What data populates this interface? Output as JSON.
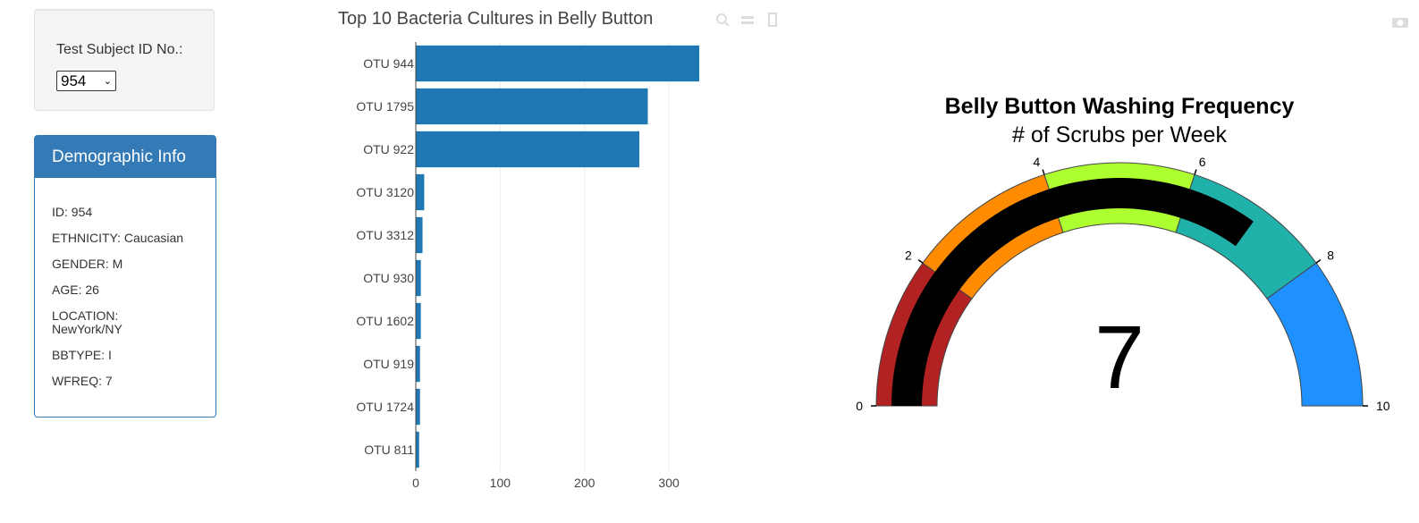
{
  "selector": {
    "label": "Test Subject ID No.:",
    "selected": "954"
  },
  "demographics": {
    "title": "Demographic Info",
    "rows": [
      "ID: 954",
      "ETHNICITY: Caucasian",
      "GENDER: M",
      "AGE: 26",
      "LOCATION: NewYork/NY",
      "BBTYPE: I",
      "WFREQ: 7"
    ]
  },
  "colors": {
    "accent": "#337ab7",
    "bar": "#1f77b4"
  },
  "icons": {
    "modebar": [
      "zoom-icon",
      "pan-icon",
      "download-icon"
    ],
    "camera": "camera-icon"
  },
  "chart_data": [
    {
      "type": "bar",
      "orientation": "horizontal",
      "title": "Top 10 Bacteria Cultures in Belly Button",
      "categories": [
        "OTU 944",
        "OTU 1795",
        "OTU 922",
        "OTU 3120",
        "OTU 3312",
        "OTU 930",
        "OTU 1602",
        "OTU 919",
        "OTU 1724",
        "OTU 811"
      ],
      "values": [
        336,
        275,
        265,
        10,
        8,
        6,
        6,
        5,
        5,
        4
      ],
      "xlim": [
        0,
        355
      ],
      "xticks": [
        0,
        100,
        200,
        300
      ],
      "xtick_labels": [
        "0",
        "100",
        "200",
        "300"
      ],
      "grid": true,
      "color": "#1f77b4"
    },
    {
      "type": "gauge",
      "title": "Belly Button Washing Frequency",
      "subtitle": "# of Scrubs per Week",
      "value": 7,
      "value_label": "7",
      "range": [
        0,
        10
      ],
      "ticks": [
        0,
        2,
        4,
        6,
        8,
        10
      ],
      "tick_labels": [
        "0",
        "2",
        "4",
        "6",
        "8",
        "10"
      ],
      "bar_color": "#000000",
      "steps": [
        {
          "range": [
            0,
            2
          ],
          "color": "#b22222"
        },
        {
          "range": [
            2,
            4
          ],
          "color": "#ff8c00"
        },
        {
          "range": [
            4,
            6
          ],
          "color": "#adff2f"
        },
        {
          "range": [
            6,
            8
          ],
          "color": "#20b2aa"
        },
        {
          "range": [
            8,
            10
          ],
          "color": "#1e90ff"
        }
      ]
    }
  ]
}
